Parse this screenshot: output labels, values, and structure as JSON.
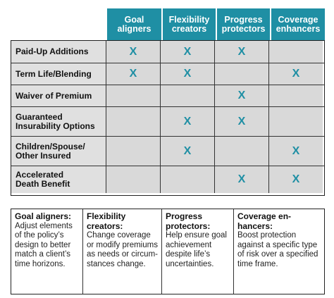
{
  "columns": [
    "Goal\naligners",
    "Flexibility\ncreators",
    "Progress\nprotectors",
    "Coverage\nenhancers"
  ],
  "mark_symbol": "X",
  "accent_color": "#1f8fa4",
  "rows": [
    {
      "label": "Paid-Up Additions",
      "marks": [
        "X",
        "X",
        "X",
        ""
      ]
    },
    {
      "label": "Term Life/Blending",
      "marks": [
        "X",
        "X",
        "",
        "X"
      ]
    },
    {
      "label": "Waiver of Premium",
      "marks": [
        "",
        "",
        "X",
        ""
      ]
    },
    {
      "label": "Guaranteed\nInsurability Options",
      "marks": [
        "",
        "X",
        "X",
        ""
      ]
    },
    {
      "label": "Children/Spouse/\nOther Insured",
      "marks": [
        "",
        "X",
        "",
        "X"
      ]
    },
    {
      "label": "Accelerated\nDeath Benefit",
      "marks": [
        "",
        "",
        "X",
        "X"
      ]
    }
  ],
  "legend": [
    {
      "title": "Goal aligners:",
      "desc": "Adjust elements\nof the policy’s\ndesign to better\nmatch a client’s\ntime horizons."
    },
    {
      "title": "Flexibility\ncreators:",
      "desc": "Change coverage\nor modify premiums\nas needs or circum-\nstances change."
    },
    {
      "title": "Progress\nprotectors:",
      "desc": "Help ensure goal\nachievement\ndespite life’s\nuncertainties."
    },
    {
      "title": "Coverage en-\nhancers:",
      "desc": "Boost protection\nagainst a specific type\nof risk over a specified\ntime frame."
    }
  ]
}
